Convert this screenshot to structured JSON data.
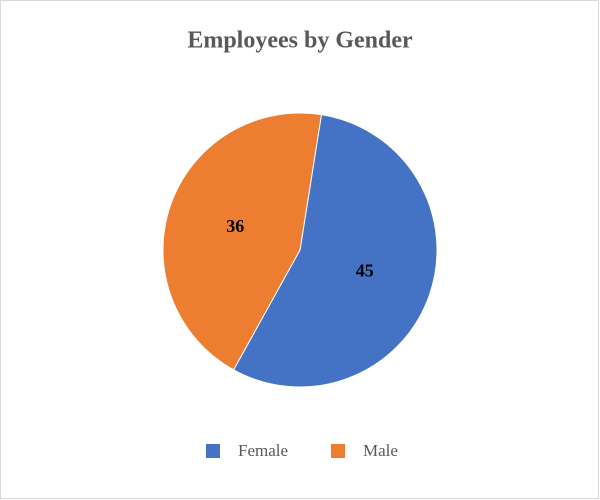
{
  "chart_data": {
    "type": "pie",
    "title": "Employees by Gender",
    "categories": [
      "Female",
      "Male"
    ],
    "values": [
      45,
      36
    ],
    "colors": [
      "#4472c4",
      "#ed7d31"
    ],
    "legend": "bottom"
  }
}
